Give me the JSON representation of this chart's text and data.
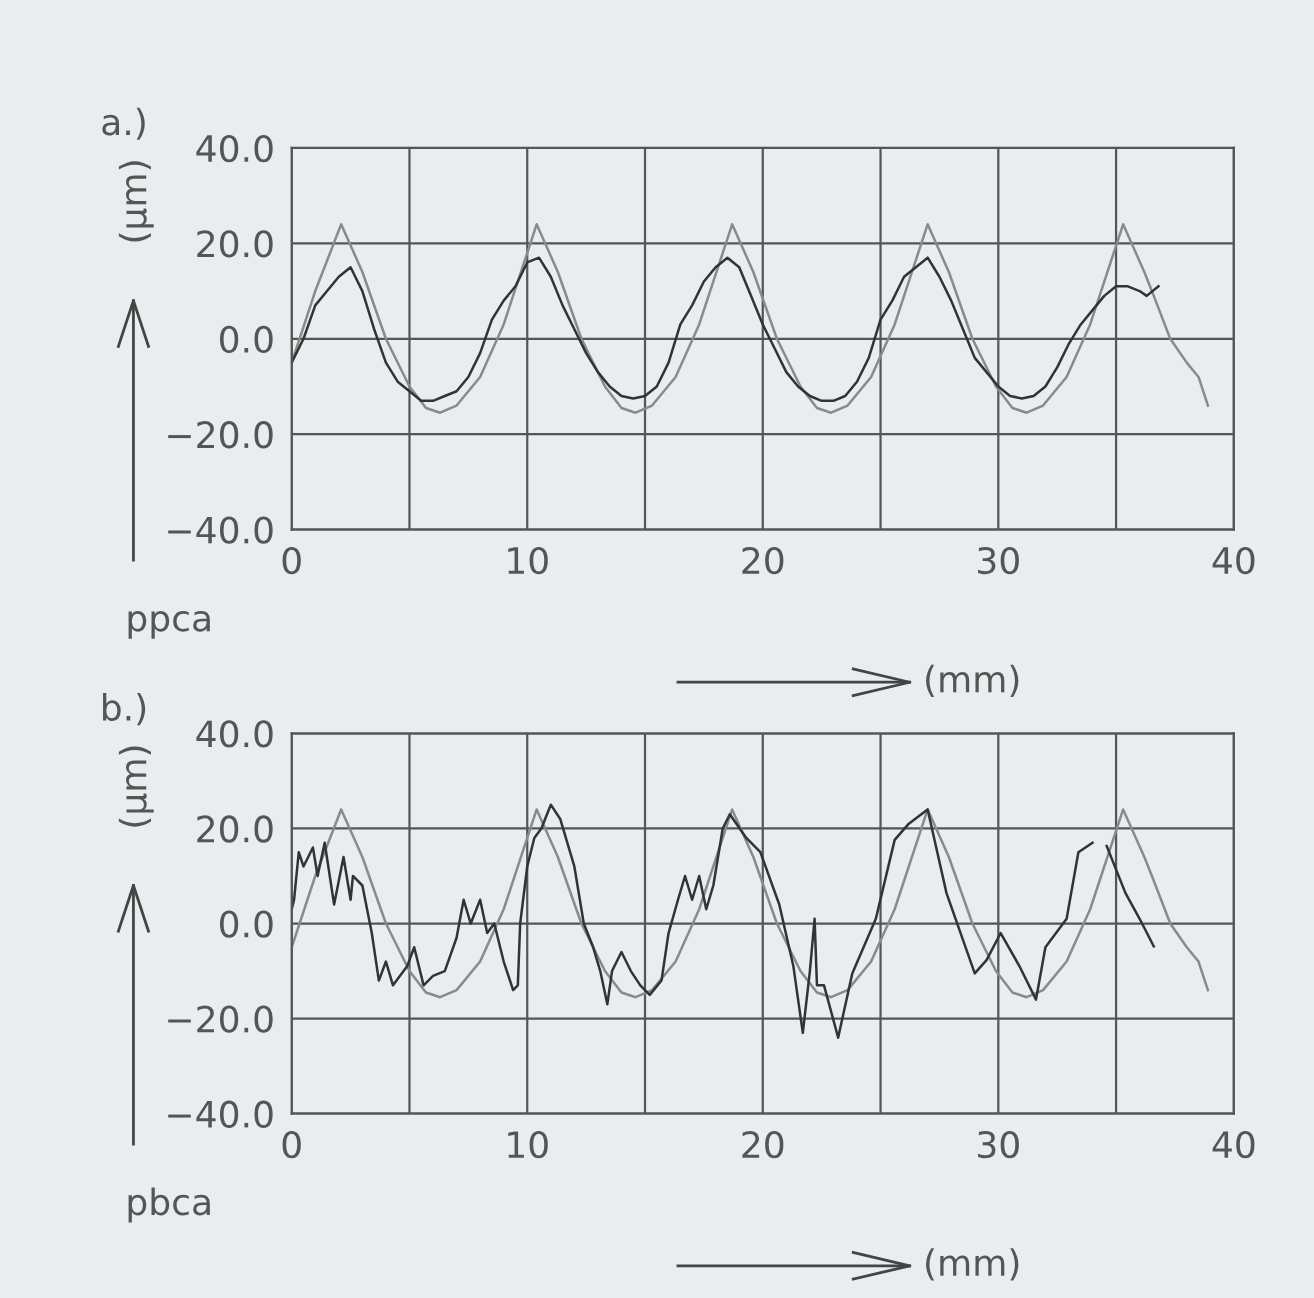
{
  "chart_data": [
    {
      "type": "line",
      "title": "a.)",
      "xlabel": "(mm)",
      "ylabel": "(μm)",
      "annotations": [
        "ppca"
      ],
      "xlim": [
        0,
        40
      ],
      "ylim": [
        -40,
        40
      ],
      "xticks": [
        0,
        {
          "value": 5,
          "label": null
        },
        10,
        {
          "value": 15,
          "label": null
        },
        20,
        {
          "value": 25,
          "label": null
        },
        30,
        {
          "value": 35,
          "label": null
        },
        40
      ],
      "yticks": [
        {
          "value": -40,
          "label": "−40.0"
        },
        {
          "value": -20,
          "label": "−20.0"
        },
        {
          "value": 0,
          "label": "0.0"
        },
        {
          "value": 20,
          "label": "20.0"
        },
        {
          "value": 40,
          "label": "40.0"
        }
      ],
      "grid": true,
      "series": [
        {
          "color": "#8a8a8a",
          "x": [
            0,
            1,
            2.1,
            3,
            4,
            5,
            5.7,
            6.3,
            7,
            8,
            9,
            10.4,
            11.3,
            12.3,
            13.3,
            14,
            14.6,
            15.3,
            16.3,
            17.3,
            18.7,
            19.6,
            20.6,
            21.6,
            22.3,
            22.9,
            23.6,
            24.6,
            25.6,
            27.0,
            27.9,
            28.9,
            29.9,
            30.6,
            31.2,
            31.9,
            32.9,
            33.9,
            35.3,
            36.2,
            36.6,
            37.3,
            38.0,
            38.5,
            38.9
          ],
          "values": [
            -5,
            10,
            24,
            14,
            0,
            -10,
            -14.5,
            -15.5,
            -14,
            -8,
            3,
            24,
            14,
            0,
            -10,
            -14.5,
            -15.5,
            -14,
            -8,
            3,
            24,
            14,
            0,
            -10,
            -14.5,
            -15.5,
            -14,
            -8,
            3,
            24,
            14,
            0,
            -10,
            -14.5,
            -15.5,
            -14,
            -8,
            3,
            24,
            14,
            9,
            0,
            -5,
            -8,
            -14
          ]
        },
        {
          "color": "#333333",
          "x": [
            0,
            0.5,
            1,
            1.5,
            2,
            2.5,
            3,
            3.5,
            4,
            4.5,
            5,
            5.5,
            6,
            6.5,
            7,
            7.5,
            8,
            8.5,
            9,
            9.5,
            10,
            10.5,
            11,
            11.5,
            12,
            12.5,
            13,
            13.5,
            14,
            14.5,
            15,
            15.5,
            16,
            16.5,
            17,
            17.5,
            18,
            18.5,
            19,
            19.5,
            20,
            20.5,
            21,
            21.5,
            22,
            22.5,
            23,
            23.5,
            24,
            24.5,
            25,
            25.5,
            26,
            26.5,
            27,
            27.5,
            28,
            28.5,
            29,
            29.5,
            30,
            30.5,
            31,
            31.5,
            32,
            32.5,
            33,
            33.5,
            34,
            34.5,
            35,
            35.5,
            36,
            36.3,
            36.8
          ],
          "values": [
            -5,
            0,
            7,
            10,
            13,
            15,
            10,
            2,
            -5,
            -9,
            -11,
            -13,
            -13,
            -12,
            -11,
            -8,
            -3,
            4,
            8,
            11,
            16,
            17,
            13,
            7,
            2,
            -3,
            -7,
            -10,
            -12,
            -12.5,
            -12,
            -10,
            -5,
            3,
            7,
            12,
            15,
            17,
            15,
            9,
            3,
            -2,
            -7,
            -10,
            -12,
            -13,
            -13,
            -12,
            -9,
            -4,
            4,
            8,
            13,
            15,
            17,
            13,
            8,
            2,
            -4,
            -7,
            -10,
            -12,
            -12.5,
            -12,
            -10,
            -6,
            -1,
            3,
            6,
            9,
            11,
            11,
            10,
            9,
            11
          ]
        }
      ]
    },
    {
      "type": "line",
      "title": "b.)",
      "xlabel": "(mm)",
      "ylabel": "(μm)",
      "annotations": [
        "pbca"
      ],
      "xlim": [
        0,
        40
      ],
      "ylim": [
        -40,
        40
      ],
      "xticks": [
        0,
        {
          "value": 5,
          "label": null
        },
        10,
        {
          "value": 15,
          "label": null
        },
        20,
        {
          "value": 25,
          "label": null
        },
        30,
        {
          "value": 35,
          "label": null
        },
        40
      ],
      "yticks": [
        {
          "value": -40,
          "label": "−40.0"
        },
        {
          "value": -20,
          "label": "−20.0"
        },
        {
          "value": 0,
          "label": "0.0"
        },
        {
          "value": 20,
          "label": "20.0"
        },
        {
          "value": 40,
          "label": "40.0"
        }
      ],
      "grid": true,
      "series": [
        {
          "color": "#8a8a8a",
          "x": [
            0,
            1,
            2.1,
            3,
            4,
            5,
            5.7,
            6.3,
            7,
            8,
            9,
            10.4,
            11.3,
            12.3,
            13.3,
            14,
            14.6,
            15.3,
            16.3,
            17.3,
            18.7,
            19.6,
            20.6,
            21.6,
            22.3,
            22.9,
            23.6,
            24.6,
            25.6,
            27.0,
            27.9,
            28.9,
            29.9,
            30.6,
            31.2,
            31.9,
            32.9,
            33.9,
            35.3,
            36.2,
            36.6,
            37.3,
            38.0,
            38.5,
            38.9
          ],
          "values": [
            -5,
            10,
            24,
            14,
            0,
            -10,
            -14.5,
            -15.5,
            -14,
            -8,
            3,
            24,
            14,
            0,
            -10,
            -14.5,
            -15.5,
            -14,
            -8,
            3,
            24,
            14,
            0,
            -10,
            -14.5,
            -15.5,
            -14,
            -8,
            3,
            24,
            14,
            0,
            -10,
            -14.5,
            -15.5,
            -14,
            -8,
            3,
            24,
            14,
            9,
            0,
            -5,
            -8,
            -14
          ]
        },
        {
          "color": "#333333",
          "x": [
            0,
            0.1,
            0.3,
            0.5,
            0.9,
            1.1,
            1.4,
            1.8,
            2.2,
            2.5,
            2.6,
            3.0,
            3.4,
            3.7,
            4.0,
            4.3,
            4.9,
            5.2,
            5.6,
            6.0,
            6.5,
            7.0,
            7.3,
            7.6,
            8.0,
            8.3,
            8.6,
            9.0,
            9.4,
            9.6,
            9.7,
            10.0,
            10.3,
            10.6,
            11.0,
            11.4,
            12.0,
            12.4,
            12.8,
            13.1,
            13.4,
            13.6,
            14.0,
            14.4,
            14.8,
            15.2,
            15.7,
            16.0,
            16.4,
            16.7,
            17.0,
            17.3,
            17.6,
            17.9,
            18.3,
            18.6,
            19.3,
            19.9,
            20.7,
            21.3,
            21.7,
            22.0,
            22.2,
            22.3,
            22.6,
            23.2,
            23.8,
            24.8,
            25.6,
            26.2,
            27.0,
            27.8,
            29.0,
            29.5,
            30.1,
            30.9,
            31.6,
            32.0,
            32.9,
            33.4,
            34.0,
            34.3,
            34.6,
            35.4,
            36.0,
            36.6
          ],
          "values": [
            3,
            5,
            15,
            12,
            16,
            10,
            17,
            4,
            14,
            5,
            10,
            8,
            -2,
            -12,
            -8,
            -13,
            -9,
            -5,
            -13,
            -11,
            -10,
            -3,
            5,
            0,
            5,
            -2,
            0,
            -8,
            -14,
            -13,
            0,
            12,
            18,
            20,
            25,
            22,
            12,
            0,
            -5,
            -10,
            -17,
            -10,
            -6,
            -10,
            -13,
            -15,
            -12,
            -2,
            5,
            10,
            5,
            10,
            3,
            8,
            20,
            23,
            18,
            15,
            4,
            -9,
            -23,
            -10,
            1,
            -13,
            -13,
            -24,
            -10.5,
            1,
            17.6,
            21,
            24,
            6.4,
            -10.5,
            -7.7,
            -2,
            -9,
            -16,
            -5,
            1,
            15,
            17,
            null,
            16.3,
            6.4,
            1,
            -4.8
          ]
        }
      ]
    }
  ]
}
